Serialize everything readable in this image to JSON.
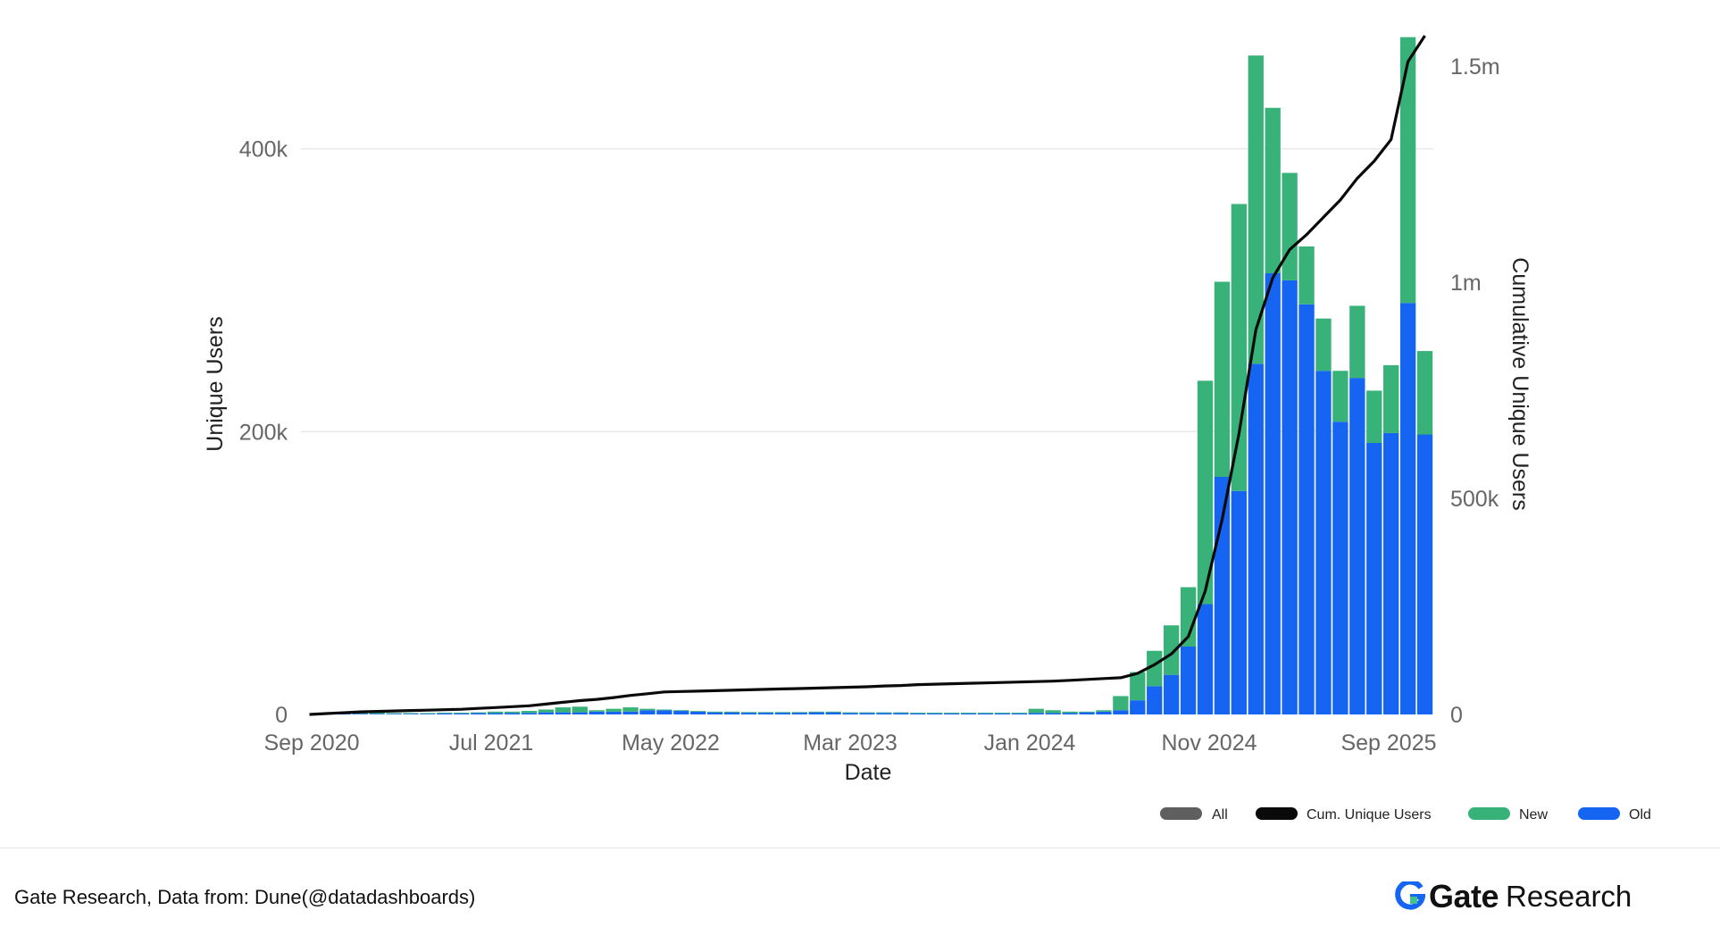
{
  "colors": {
    "new": "#39b27a",
    "old": "#1565f2",
    "all": "#5f5f5f",
    "cum": "#0a0a0a",
    "grid": "#e8e8e8",
    "brand_blue": "#1565f2"
  },
  "chart_data": {
    "type": "bar",
    "stacked": true,
    "xlabel": "Date",
    "ylabel": "Unique Users",
    "y2label": "Cumulative Unique Users",
    "ylim": [
      0,
      480000
    ],
    "y2lim": [
      0,
      1570000
    ],
    "y_ticks": [
      "0",
      "200k",
      "400k"
    ],
    "y2_ticks": [
      "0",
      "500k",
      "1m",
      "1.5m"
    ],
    "x_ticks": [
      "Sep 2020",
      "Jul 2021",
      "May 2022",
      "Mar 2023",
      "Jan 2024",
      "Nov 2024",
      "Sep 2025"
    ],
    "legend_position": "bottom-right",
    "legend": [
      "All",
      "Cum. Unique Users",
      "New",
      "Old"
    ],
    "series": [
      {
        "name": "Old",
        "values": [
          0,
          0,
          500,
          500,
          500,
          500,
          500,
          500,
          800,
          800,
          1000,
          1000,
          1000,
          1000,
          1500,
          1500,
          1500,
          2000,
          2000,
          2000,
          3000,
          3000,
          2500,
          2000,
          1500,
          1500,
          1200,
          1200,
          1200,
          1200,
          1500,
          1500,
          1000,
          1000,
          1000,
          1000,
          800,
          800,
          800,
          800,
          800,
          800,
          800,
          1000,
          1000,
          1000,
          1500,
          2000,
          3000,
          10000,
          20000,
          28000,
          48000,
          78000,
          168000,
          158000,
          248000,
          312000,
          307000,
          290000,
          243000,
          207000,
          238000,
          192000,
          199000,
          291000,
          198000
        ]
      },
      {
        "name": "New",
        "values": [
          0,
          0,
          500,
          500,
          1000,
          500,
          500,
          500,
          500,
          500,
          500,
          1000,
          1000,
          1500,
          2000,
          3500,
          4000,
          1000,
          2000,
          3000,
          1000,
          500,
          500,
          500,
          500,
          500,
          500,
          500,
          500,
          500,
          500,
          500,
          500,
          500,
          500,
          500,
          500,
          500,
          500,
          500,
          500,
          500,
          500,
          3000,
          2000,
          1000,
          500,
          1000,
          10000,
          20000,
          25000,
          35000,
          42000,
          158000,
          138000,
          203000,
          218000,
          117000,
          76000,
          41000,
          37000,
          36000,
          51000,
          37000,
          48000,
          188000,
          59000
        ]
      },
      {
        "name": "Cum. Unique Users",
        "values": [
          0,
          2000,
          4000,
          6000,
          7000,
          8000,
          9000,
          10000,
          11000,
          12000,
          14000,
          16000,
          18000,
          20000,
          24000,
          28000,
          32000,
          35000,
          39000,
          44000,
          48000,
          52000,
          53000,
          54000,
          55000,
          56000,
          57000,
          58000,
          59000,
          60000,
          61000,
          62000,
          63000,
          64000,
          66000,
          67000,
          69000,
          70000,
          71000,
          72000,
          73000,
          74000,
          75000,
          76000,
          77000,
          79000,
          81000,
          83000,
          85000,
          95000,
          115000,
          140000,
          180000,
          285000,
          450000,
          650000,
          890000,
          1010000,
          1075000,
          1110000,
          1150000,
          1190000,
          1240000,
          1280000,
          1330000,
          1510000,
          1570000
        ]
      }
    ]
  },
  "footer": {
    "source": "Gate Research, Data from: Dune(@datadashboards)",
    "brand_gate": "Gate",
    "brand_research": "Research"
  }
}
